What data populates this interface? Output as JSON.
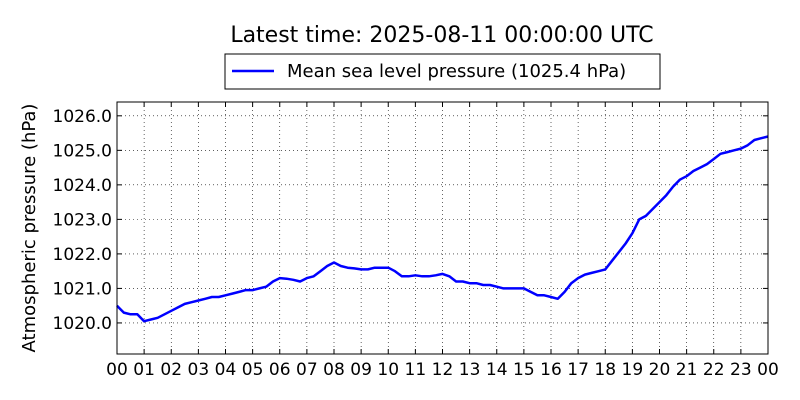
{
  "chart_data": {
    "type": "line",
    "title": "Latest time: 2025-08-11 00:00:00 UTC",
    "ylabel": "Atmospheric pressure (hPa)",
    "xlabel": "",
    "xlim": [
      0,
      24
    ],
    "ylim": [
      1019.1,
      1026.4
    ],
    "x_ticks": [
      "00",
      "01",
      "02",
      "03",
      "04",
      "05",
      "06",
      "07",
      "08",
      "09",
      "10",
      "11",
      "12",
      "13",
      "14",
      "15",
      "16",
      "17",
      "18",
      "19",
      "20",
      "21",
      "22",
      "23",
      "00"
    ],
    "y_ticks": [
      "1020.0",
      "1021.0",
      "1022.0",
      "1023.0",
      "1024.0",
      "1025.0",
      "1026.0"
    ],
    "grid": true,
    "legend_position": "top-center",
    "series": [
      {
        "name": "Mean sea level pressure (1025.4 hPa)",
        "color": "#0000ff",
        "x": [
          0,
          0.25,
          0.5,
          0.75,
          1.0,
          1.25,
          1.5,
          1.75,
          2.0,
          2.25,
          2.5,
          2.75,
          3.0,
          3.25,
          3.5,
          3.75,
          4.0,
          4.25,
          4.5,
          4.75,
          5.0,
          5.25,
          5.5,
          5.75,
          6.0,
          6.25,
          6.5,
          6.75,
          7.0,
          7.25,
          7.5,
          7.75,
          8.0,
          8.25,
          8.5,
          8.75,
          9.0,
          9.25,
          9.5,
          9.75,
          10.0,
          10.25,
          10.5,
          10.75,
          11.0,
          11.25,
          11.5,
          11.75,
          12.0,
          12.25,
          12.5,
          12.75,
          13.0,
          13.25,
          13.5,
          13.75,
          14.0,
          14.25,
          14.5,
          14.75,
          15.0,
          15.25,
          15.5,
          15.75,
          16.0,
          16.25,
          16.5,
          16.75,
          17.0,
          17.25,
          17.5,
          17.75,
          18.0,
          18.25,
          18.5,
          18.75,
          19.0,
          19.25,
          19.5,
          19.75,
          20.0,
          20.25,
          20.5,
          20.75,
          21.0,
          21.25,
          21.5,
          21.75,
          22.0,
          22.25,
          22.5,
          22.75,
          23.0,
          23.25,
          23.5,
          23.75,
          24.0
        ],
        "values": [
          1020.5,
          1020.3,
          1020.25,
          1020.25,
          1020.05,
          1020.1,
          1020.15,
          1020.25,
          1020.35,
          1020.45,
          1020.55,
          1020.6,
          1020.65,
          1020.7,
          1020.75,
          1020.75,
          1020.8,
          1020.85,
          1020.9,
          1020.95,
          1020.95,
          1021.0,
          1021.05,
          1021.2,
          1021.3,
          1021.28,
          1021.25,
          1021.2,
          1021.3,
          1021.35,
          1021.5,
          1021.65,
          1021.75,
          1021.65,
          1021.6,
          1021.58,
          1021.55,
          1021.55,
          1021.6,
          1021.6,
          1021.6,
          1021.5,
          1021.35,
          1021.35,
          1021.38,
          1021.35,
          1021.35,
          1021.38,
          1021.42,
          1021.35,
          1021.2,
          1021.2,
          1021.15,
          1021.15,
          1021.1,
          1021.1,
          1021.05,
          1021.0,
          1021.0,
          1021.0,
          1021.0,
          1020.9,
          1020.8,
          1020.8,
          1020.75,
          1020.7,
          1020.9,
          1021.15,
          1021.3,
          1021.4,
          1021.45,
          1021.5,
          1021.55,
          1021.8,
          1022.05,
          1022.3,
          1022.6,
          1023.0,
          1023.1,
          1023.3,
          1023.5,
          1023.7,
          1023.95,
          1024.15,
          1024.25,
          1024.4,
          1024.5,
          1024.6,
          1024.75,
          1024.9,
          1024.95,
          1025.0,
          1025.05,
          1025.15,
          1025.3,
          1025.35,
          1025.4
        ]
      }
    ]
  }
}
